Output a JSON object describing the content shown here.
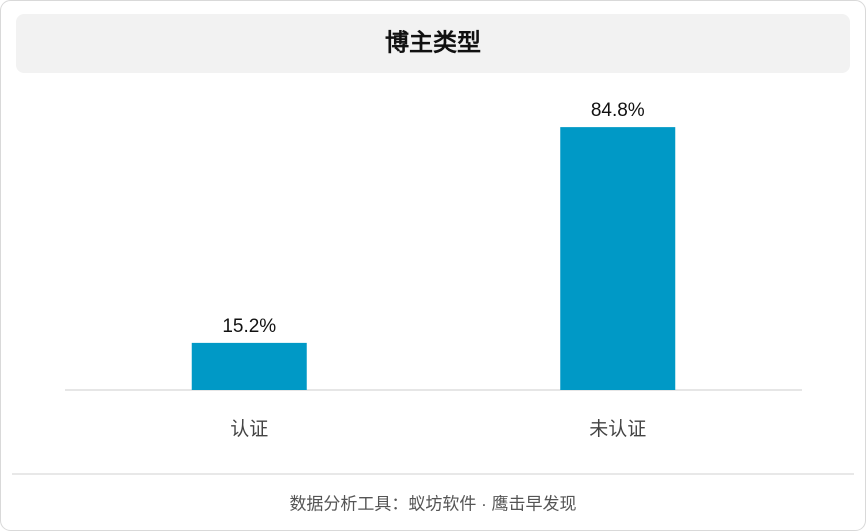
{
  "chart_data": {
    "type": "bar",
    "title": "博主类型",
    "categories": [
      "认证",
      "未认证"
    ],
    "values": [
      15.2,
      84.8
    ],
    "value_labels": [
      "15.2%",
      "84.8%"
    ],
    "color": "#0099c6",
    "grid": false,
    "footer": "数据分析工具：蚁坊软件 · 鹰击早发现"
  }
}
